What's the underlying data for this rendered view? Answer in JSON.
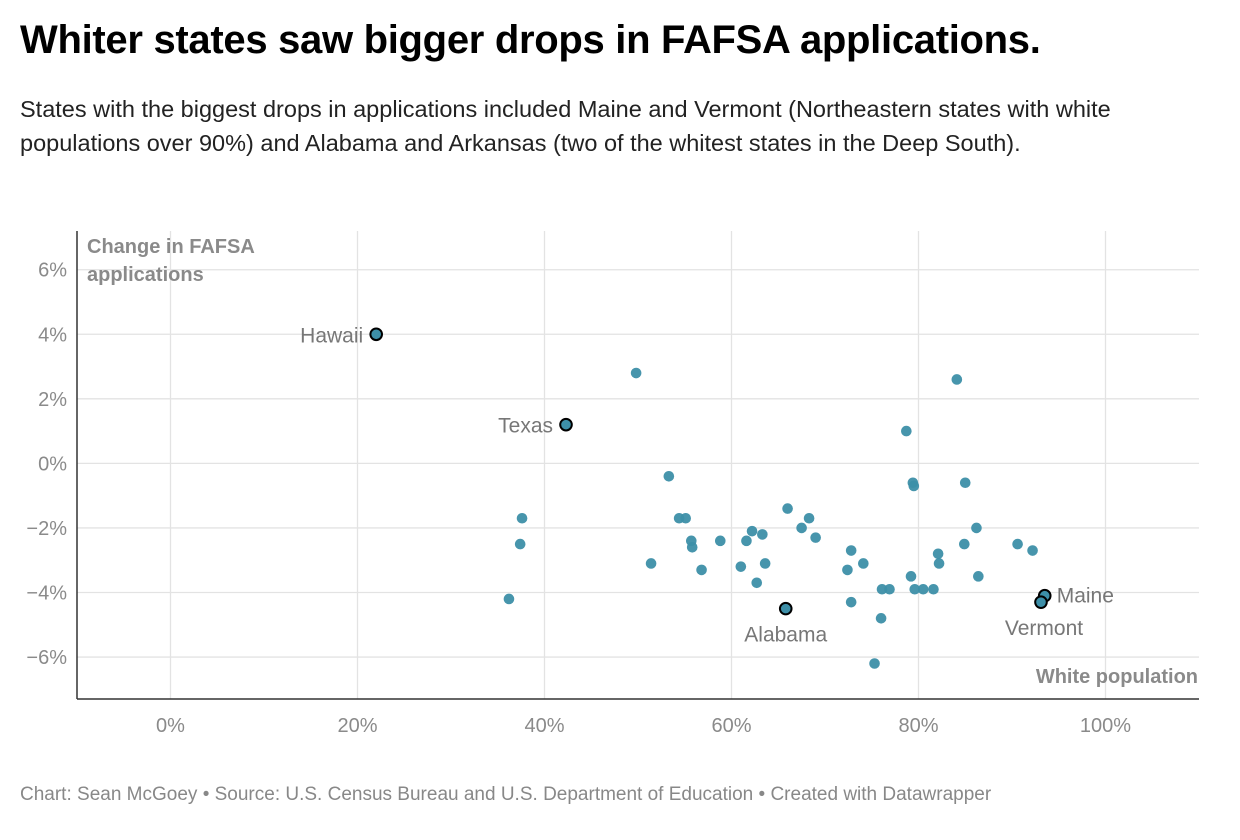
{
  "title": "Whiter states saw bigger drops in FAFSA applications.",
  "subtitle": "States with the biggest drops in applications included Maine and Vermont (Northeastern states with white populations over 90%) and Alabama and Arkansas (two of the whitest states in the Deep South).",
  "footer": "Chart: Sean McGoey • Source: U.S. Census Bureau and U.S. Department of Education • Created with Datawrapper",
  "colors": {
    "point": "#3d8fa8",
    "highlight_stroke": "#000000",
    "grid": "#e3e3e3",
    "axis": "#333333"
  },
  "chart_data": {
    "type": "scatter",
    "title": "Whiter states saw bigger drops in FAFSA applications.",
    "xlabel": "White population",
    "ylabel": "Change in FAFSA applications",
    "ylabel_lines": [
      "Change in FAFSA",
      "applications"
    ],
    "xlim": [
      -10,
      110
    ],
    "ylim": [
      -7.3,
      7.2
    ],
    "x_ticks": [
      0,
      20,
      40,
      60,
      80,
      100
    ],
    "x_tick_labels": [
      "0%",
      "20%",
      "40%",
      "60%",
      "80%",
      "100%"
    ],
    "y_ticks": [
      6,
      4,
      2,
      0,
      -2,
      -4,
      -6
    ],
    "y_tick_labels": [
      "6%",
      "4%",
      "2%",
      "0%",
      "−2%",
      "−4%",
      "−6%"
    ],
    "grid": true,
    "points": [
      {
        "x": 22.0,
        "y": 4.0,
        "label": "Hawaii",
        "highlight": true,
        "label_pos": "left"
      },
      {
        "x": 42.3,
        "y": 1.2,
        "label": "Texas",
        "highlight": true,
        "label_pos": "left"
      },
      {
        "x": 65.8,
        "y": -4.5,
        "label": "Alabama",
        "highlight": true,
        "label_pos": "below"
      },
      {
        "x": 93.5,
        "y": -4.1,
        "label": "Maine",
        "highlight": true,
        "label_pos": "right"
      },
      {
        "x": 93.1,
        "y": -4.3,
        "label": "Vermont",
        "highlight": true,
        "label_pos": "below-left"
      },
      {
        "x": 49.8,
        "y": 2.8
      },
      {
        "x": 53.3,
        "y": -0.4
      },
      {
        "x": 37.6,
        "y": -1.7
      },
      {
        "x": 37.4,
        "y": -2.5
      },
      {
        "x": 36.2,
        "y": -4.2
      },
      {
        "x": 51.4,
        "y": -3.1
      },
      {
        "x": 54.4,
        "y": -1.7
      },
      {
        "x": 55.1,
        "y": -1.7
      },
      {
        "x": 55.7,
        "y": -2.4
      },
      {
        "x": 55.8,
        "y": -2.6
      },
      {
        "x": 56.8,
        "y": -3.3
      },
      {
        "x": 58.8,
        "y": -2.4
      },
      {
        "x": 61.0,
        "y": -3.2
      },
      {
        "x": 61.6,
        "y": -2.4
      },
      {
        "x": 62.2,
        "y": -2.1
      },
      {
        "x": 62.7,
        "y": -3.7
      },
      {
        "x": 63.3,
        "y": -2.2
      },
      {
        "x": 63.6,
        "y": -3.1
      },
      {
        "x": 66.0,
        "y": -1.4
      },
      {
        "x": 67.5,
        "y": -2.0
      },
      {
        "x": 68.3,
        "y": -1.7
      },
      {
        "x": 69.0,
        "y": -2.3
      },
      {
        "x": 72.4,
        "y": -3.3
      },
      {
        "x": 72.8,
        "y": -2.7
      },
      {
        "x": 72.8,
        "y": -4.3
      },
      {
        "x": 74.1,
        "y": -3.1
      },
      {
        "x": 75.3,
        "y": -6.2
      },
      {
        "x": 76.0,
        "y": -4.8
      },
      {
        "x": 76.1,
        "y": -3.9
      },
      {
        "x": 76.9,
        "y": -3.9
      },
      {
        "x": 78.7,
        "y": 1.0
      },
      {
        "x": 79.2,
        "y": -3.5
      },
      {
        "x": 79.4,
        "y": -0.6
      },
      {
        "x": 79.5,
        "y": -0.7
      },
      {
        "x": 79.6,
        "y": -3.9
      },
      {
        "x": 80.5,
        "y": -3.9
      },
      {
        "x": 81.6,
        "y": -3.9
      },
      {
        "x": 82.1,
        "y": -2.8
      },
      {
        "x": 82.2,
        "y": -3.1
      },
      {
        "x": 84.1,
        "y": 2.6
      },
      {
        "x": 84.9,
        "y": -2.5
      },
      {
        "x": 85.0,
        "y": -0.6
      },
      {
        "x": 86.2,
        "y": -2.0
      },
      {
        "x": 86.4,
        "y": -3.5
      },
      {
        "x": 90.6,
        "y": -2.5
      },
      {
        "x": 92.2,
        "y": -2.7
      }
    ]
  }
}
